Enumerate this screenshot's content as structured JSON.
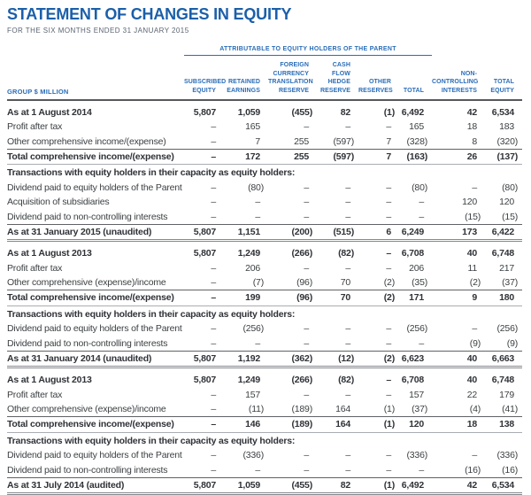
{
  "page": {
    "title": "STATEMENT OF CHANGES IN EQUITY",
    "subtitle": "FOR THE SIX MONTHS ENDED 31 JANUARY 2015"
  },
  "colors": {
    "title_blue": "#1b5fa9",
    "header_blue": "#2a6db8",
    "rule_dark": "#56585c",
    "rule_light": "#a9adb2",
    "body_text": "#3c4043",
    "bold_text": "#2f3237",
    "background": "#ffffff"
  },
  "table": {
    "group_header": "ATTRIBUTABLE TO EQUITY HOLDERS OF THE PARENT",
    "row_label_header": "GROUP $ MILLION",
    "columns": [
      "SUBSCRIBED\nEQUITY",
      "RETAINED\nEARNINGS",
      "FOREIGN\nCURRENCY\nTRANSLATION\nRESERVE",
      "CASH FLOW\nHEDGE\nRESERVE",
      "OTHER\nRESERVES",
      "TOTAL",
      "NON-\nCONTROLLING\nINTERESTS",
      "TOTAL\nEQUITY"
    ],
    "rows": [
      {
        "label": "As at 1 August 2014",
        "style": "opening",
        "values": [
          "5,807",
          "1,059",
          "(455)",
          "82",
          "(1)",
          "6,492",
          "42",
          "6,534"
        ]
      },
      {
        "label": "Profit after tax",
        "style": "normal",
        "values": [
          "–",
          "165",
          "–",
          "–",
          "–",
          "165",
          "18",
          "183"
        ]
      },
      {
        "label": "Other comprehensive income/(expense)",
        "style": "normal",
        "values": [
          "–",
          "7",
          "255",
          "(597)",
          "7",
          "(328)",
          "8",
          "(320)"
        ]
      },
      {
        "label": "Total comprehensive income/(expense)",
        "style": "total",
        "values": [
          "–",
          "172",
          "255",
          "(597)",
          "7",
          "(163)",
          "26",
          "(137)"
        ]
      },
      {
        "label": "Transactions with equity holders in their capacity as equity holders:",
        "style": "section",
        "values": []
      },
      {
        "label": "Dividend paid to equity holders of the Parent",
        "style": "normal",
        "values": [
          "–",
          "(80)",
          "–",
          "–",
          "–",
          "(80)",
          "–",
          "(80)"
        ]
      },
      {
        "label": "Acquisition of subsidiaries",
        "style": "normal",
        "values": [
          "–",
          "–",
          "–",
          "–",
          "–",
          "–",
          "120",
          "120"
        ]
      },
      {
        "label": "Dividend paid to non-controlling interests",
        "style": "normal",
        "values": [
          "–",
          "–",
          "–",
          "–",
          "–",
          "–",
          "(15)",
          "(15)"
        ]
      },
      {
        "label": "As at 31 January 2015 (unaudited)",
        "style": "closing",
        "values": [
          "5,807",
          "1,151",
          "(200)",
          "(515)",
          "6",
          "6,249",
          "173",
          "6,422"
        ]
      },
      {
        "label": "As at 1 August 2013",
        "style": "opening",
        "values": [
          "5,807",
          "1,249",
          "(266)",
          "(82)",
          "–",
          "6,708",
          "40",
          "6,748"
        ]
      },
      {
        "label": "Profit after tax",
        "style": "normal",
        "values": [
          "–",
          "206",
          "–",
          "–",
          "–",
          "206",
          "11",
          "217"
        ]
      },
      {
        "label": "Other comprehensive (expense)/income",
        "style": "normal",
        "values": [
          "–",
          "(7)",
          "(96)",
          "70",
          "(2)",
          "(35)",
          "(2)",
          "(37)"
        ]
      },
      {
        "label": "Total comprehensive income/(expense)",
        "style": "total",
        "values": [
          "–",
          "199",
          "(96)",
          "70",
          "(2)",
          "171",
          "9",
          "180"
        ]
      },
      {
        "label": "Transactions with equity holders in their capacity as equity holders:",
        "style": "section",
        "values": []
      },
      {
        "label": "Dividend paid to equity holders of the Parent",
        "style": "normal",
        "values": [
          "–",
          "(256)",
          "–",
          "–",
          "–",
          "(256)",
          "–",
          "(256)"
        ]
      },
      {
        "label": "Dividend paid to non-controlling interests",
        "style": "normal",
        "values": [
          "–",
          "–",
          "–",
          "–",
          "–",
          "–",
          "(9)",
          "(9)"
        ]
      },
      {
        "label": "As at 31 January 2014 (unaudited)",
        "style": "closing",
        "values": [
          "5,807",
          "1,192",
          "(362)",
          "(12)",
          "(2)",
          "6,623",
          "40",
          "6,663"
        ]
      },
      {
        "label": "As at 1 August 2013",
        "style": "opening",
        "values": [
          "5,807",
          "1,249",
          "(266)",
          "(82)",
          "–",
          "6,708",
          "40",
          "6,748"
        ]
      },
      {
        "label": "Profit after tax",
        "style": "normal",
        "values": [
          "–",
          "157",
          "–",
          "–",
          "–",
          "157",
          "22",
          "179"
        ]
      },
      {
        "label": "Other comprehensive (expense)/income",
        "style": "normal",
        "values": [
          "–",
          "(11)",
          "(189)",
          "164",
          "(1)",
          "(37)",
          "(4)",
          "(41)"
        ]
      },
      {
        "label": "Total comprehensive income/(expense)",
        "style": "total",
        "values": [
          "–",
          "146",
          "(189)",
          "164",
          "(1)",
          "120",
          "18",
          "138"
        ]
      },
      {
        "label": "Transactions with equity holders in their capacity as equity holders:",
        "style": "section",
        "values": []
      },
      {
        "label": "Dividend paid to equity holders of the Parent",
        "style": "normal",
        "values": [
          "–",
          "(336)",
          "–",
          "–",
          "–",
          "(336)",
          "–",
          "(336)"
        ]
      },
      {
        "label": "Dividend paid to non-controlling interests",
        "style": "normal",
        "values": [
          "–",
          "–",
          "–",
          "–",
          "–",
          "–",
          "(16)",
          "(16)"
        ]
      },
      {
        "label": "As at 31 July 2014 (audited)",
        "style": "closing",
        "values": [
          "5,807",
          "1,059",
          "(455)",
          "82",
          "(1)",
          "6,492",
          "42",
          "6,534"
        ]
      }
    ]
  }
}
